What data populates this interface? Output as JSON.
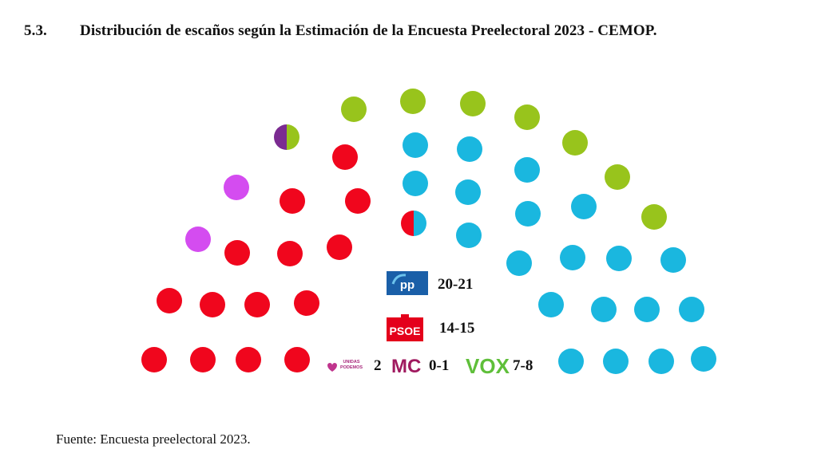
{
  "section_number": "5.3.",
  "title": "Distribución de escaños según la Estimación de la Encuesta Preelectoral 2023 - CEMOP.",
  "source": "Fuente: Encuesta preelectoral 2023.",
  "colors": {
    "PP": "#1ab7df",
    "PSOE": "#f0061d",
    "VOX": "#98c41c",
    "Unidas Podemos": "#d44cf0",
    "MC": "#7b2b91"
  },
  "chart_data": {
    "type": "parliament",
    "title": "",
    "total_seats": 45,
    "series": [
      {
        "name": "PP",
        "logo_text": "pp",
        "range_label": "20-21",
        "seats": [
          20,
          21
        ]
      },
      {
        "name": "PSOE",
        "logo_text": "PSOE",
        "range_label": "14-15",
        "seats": [
          14,
          15
        ]
      },
      {
        "name": "Unidas Podemos",
        "logo_text": "UNIDAS PODEMOS",
        "range_label": "2",
        "seats": [
          2,
          2
        ]
      },
      {
        "name": "MC",
        "logo_text": "MC",
        "range_label": "0-1",
        "seats": [
          0,
          1
        ]
      },
      {
        "name": "VOX",
        "logo_text": "VOX",
        "range_label": "7-8",
        "seats": [
          7,
          8
        ]
      }
    ],
    "seat_layout": [
      "PSOE",
      "PSOE",
      "PSOE",
      "PSOE",
      "PSOE",
      "PSOE",
      "PSOE",
      "PSOE",
      "PSOE",
      "PSOE",
      "PSOE",
      "PSOE",
      "PSOE",
      "PSOE",
      "PSOE/PP",
      "Unidas Podemos",
      "Unidas Podemos",
      "MC/VOX",
      "VOX",
      "VOX",
      "VOX",
      "VOX",
      "VOX",
      "VOX",
      "VOX",
      "PP",
      "PP",
      "PP",
      "PP",
      "PP",
      "PP",
      "PP",
      "PP",
      "PP",
      "PP",
      "PP",
      "PP",
      "PP",
      "PP",
      "PP",
      "PP",
      "PP",
      "PP",
      "PP",
      "PP"
    ]
  }
}
